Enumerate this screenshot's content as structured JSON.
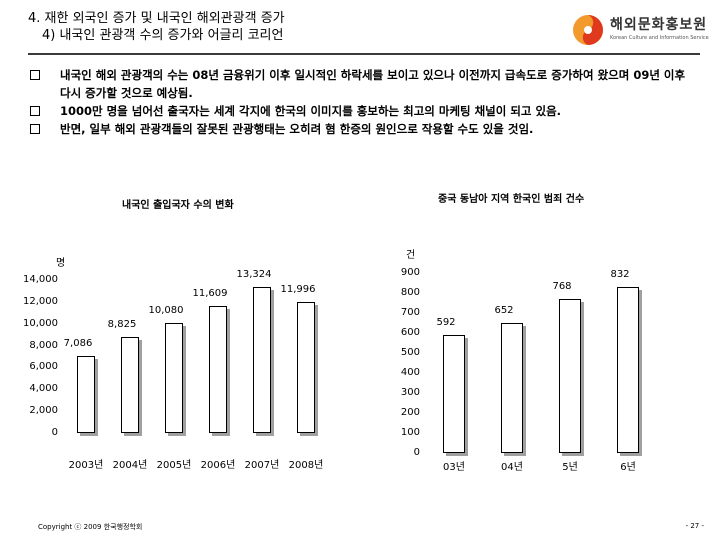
{
  "header": {
    "title_line1": "4. 재한 외국인 증가 및 내국인 해외관광객 증가",
    "title_line2": "4) 내국인 관광객 수의 증가와 어글리 코리언",
    "logo_name": "해외문화홍보원",
    "logo_subtitle": "Korean Culture and Information Service"
  },
  "bullets": [
    "내국인 해외 관광객의 수는 08년 금융위기 이후 일시적인 하락세를 보이고 있으나 이전까지 급속도로 증가하여 왔으며 09년 이후 다시 증가할 것으로 예상됨.",
    "1000만 명을 넘어선 출국자는 세계 각지에 한국의 이미지를 홍보하는 최고의 마케팅 채널이 되고 있음.",
    "반면, 일부 해외 관광객들의 잘못된 관광행태는 오히려 혐 한증의 원인으로 작용할 수도 있을 것임."
  ],
  "chart_data": [
    {
      "type": "bar",
      "title": "내국인 출입국자 수의 변화",
      "ylabel": "명",
      "categories": [
        "2003년",
        "2004년",
        "2005년",
        "2006년",
        "2007년",
        "2008년"
      ],
      "values": [
        7086,
        8825,
        10080,
        11609,
        13324,
        11996
      ],
      "value_labels": [
        "7,086",
        "8,825",
        "10,080",
        "11,609",
        "13,324",
        "11,996"
      ],
      "yticks": [
        "0",
        "2,000",
        "4,000",
        "6,000",
        "8,000",
        "10,000",
        "12,000",
        "14,000"
      ],
      "ylim": [
        0,
        14000
      ]
    },
    {
      "type": "bar",
      "title": "중국 동남아 지역 한국인 범죄 건수",
      "ylabel": "건",
      "categories": [
        "03년",
        "04년",
        "5년",
        "6년"
      ],
      "values": [
        592,
        652,
        768,
        832
      ],
      "value_labels": [
        "592",
        "652",
        "768",
        "832"
      ],
      "yticks": [
        "0",
        "100",
        "200",
        "300",
        "400",
        "500",
        "600",
        "700",
        "800",
        "900"
      ],
      "ylim": [
        0,
        900
      ]
    }
  ],
  "footer": {
    "copyright": "Copyright ⓒ 2009 한국행정학회",
    "page": "- 27 -"
  },
  "colors": {
    "logo_red": "#e03a1e",
    "logo_orange": "#f29a2e",
    "bar_shadow": "#a0a0a0"
  }
}
